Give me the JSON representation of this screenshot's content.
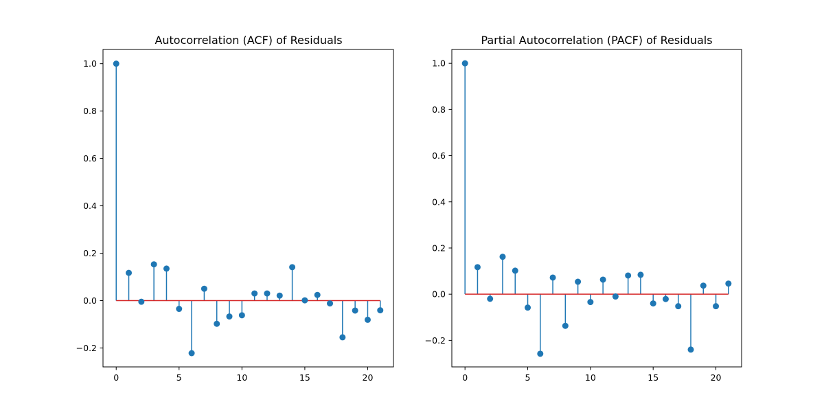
{
  "chart_data": [
    {
      "type": "stem",
      "title": "Autocorrelation (ACF) of Residuals",
      "xlabel": "",
      "ylabel": "",
      "xlim": [
        -1.05,
        22.05
      ],
      "ylim": [
        -0.28,
        1.06
      ],
      "xticks": [
        0,
        5,
        10,
        15,
        20
      ],
      "yticks": [
        -0.2,
        0.0,
        0.2,
        0.4,
        0.6,
        0.8,
        1.0
      ],
      "ytick_labels": [
        "−0.2",
        "0.0",
        "0.2",
        "0.4",
        "0.6",
        "0.8",
        "1.0"
      ],
      "grid": false,
      "x": [
        0,
        1,
        2,
        3,
        4,
        5,
        6,
        7,
        8,
        9,
        10,
        11,
        12,
        13,
        14,
        15,
        16,
        17,
        18,
        19,
        20,
        21
      ],
      "values": [
        1.0,
        0.117,
        -0.005,
        0.153,
        0.135,
        -0.035,
        -0.222,
        0.05,
        -0.098,
        -0.067,
        -0.062,
        0.03,
        0.03,
        0.021,
        0.141,
        0.001,
        0.024,
        -0.012,
        -0.155,
        -0.042,
        -0.081,
        -0.041
      ],
      "baseline": 0.0
    },
    {
      "type": "stem",
      "title": "Partial Autocorrelation (PACF) of Residuals",
      "xlabel": "",
      "ylabel": "",
      "xlim": [
        -1.05,
        22.05
      ],
      "ylim": [
        -0.315,
        1.06
      ],
      "xticks": [
        0,
        5,
        10,
        15,
        20
      ],
      "yticks": [
        -0.2,
        0.0,
        0.2,
        0.4,
        0.6,
        0.8,
        1.0
      ],
      "ytick_labels": [
        "−0.2",
        "0.0",
        "0.2",
        "0.4",
        "0.6",
        "0.8",
        "1.0"
      ],
      "grid": false,
      "x": [
        0,
        1,
        2,
        3,
        4,
        5,
        6,
        7,
        8,
        9,
        10,
        11,
        12,
        13,
        14,
        15,
        16,
        17,
        18,
        19,
        20,
        21
      ],
      "values": [
        1.0,
        0.117,
        -0.02,
        0.162,
        0.102,
        -0.058,
        -0.258,
        0.072,
        -0.137,
        0.054,
        -0.034,
        0.063,
        -0.01,
        0.081,
        0.084,
        -0.04,
        -0.021,
        -0.052,
        -0.24,
        0.037,
        -0.052,
        0.046
      ],
      "baseline": 0.0
    }
  ],
  "colors": {
    "stem": "#1f77b4",
    "marker": "#1f77b4",
    "baseline": "#d62728",
    "axes": "#000000"
  }
}
